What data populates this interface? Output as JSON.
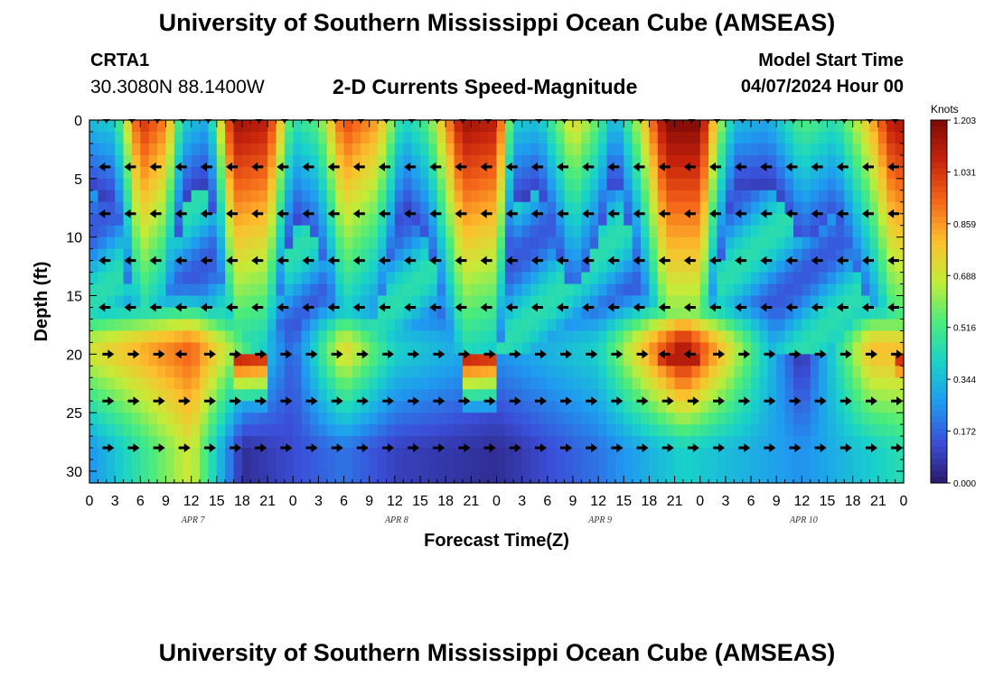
{
  "header": {
    "title": "University of Southern Mississippi Ocean Cube (AMSEAS)",
    "station": "CRTA1",
    "coordinates": "30.3080N  88.1400W",
    "product": "2-D Currents Speed-Magnitude",
    "model_start_label": "Model Start Time",
    "model_start_value": "04/07/2024 Hour 00"
  },
  "footer": {
    "title": "University of Southern Mississippi Ocean Cube (AMSEAS)"
  },
  "chart_data": {
    "type": "heatmap",
    "title": "2-D Currents Speed-Magnitude",
    "xlabel": "Forecast Time(Z)",
    "ylabel": "Depth (ft)",
    "xlim": [
      0,
      96
    ],
    "ylim": [
      31,
      0
    ],
    "x_tick_labels": [
      "0",
      "3",
      "6",
      "9",
      "12",
      "15",
      "18",
      "21",
      "0",
      "3",
      "6",
      "9",
      "12",
      "15",
      "18",
      "21",
      "0",
      "3",
      "6",
      "9",
      "12",
      "15",
      "18",
      "21",
      "0",
      "3",
      "6",
      "9",
      "12",
      "15",
      "18",
      "21",
      "0"
    ],
    "y_ticks": [
      0,
      5,
      10,
      15,
      20,
      25,
      30
    ],
    "date_labels": [
      {
        "label": "APR 7",
        "hour": 12
      },
      {
        "label": "APR 8",
        "hour": 36
      },
      {
        "label": "APR 9",
        "hour": 60
      },
      {
        "label": "APR 10",
        "hour": 84
      }
    ],
    "colorbar": {
      "label": "Knots",
      "min": 0.0,
      "max": 1.203,
      "ticks": [
        "0.000",
        "0.172",
        "0.344",
        "0.516",
        "0.688",
        "0.859",
        "1.031",
        "1.203"
      ],
      "colormap": [
        "#2a1a6b",
        "#3b4fd9",
        "#1f9bf0",
        "#19d3c8",
        "#4cec7b",
        "#c4ec38",
        "#fdbf2d",
        "#f46518",
        "#c7230c",
        "#7e0a05"
      ]
    },
    "depth_levels_ft": [
      0,
      4,
      8,
      12,
      16,
      20,
      24,
      28
    ],
    "arrow_hours": [
      2,
      5,
      8,
      11,
      14,
      17,
      20,
      23,
      26,
      29,
      32,
      35,
      38,
      41,
      44,
      47,
      50,
      53,
      56,
      59,
      62,
      65,
      68,
      71,
      74,
      77,
      80,
      83,
      86,
      89,
      92,
      95
    ],
    "surface_speed_knots_by_hour": [
      [
        0,
        0.35
      ],
      [
        3,
        0.4
      ],
      [
        6,
        1.05
      ],
      [
        9,
        0.9
      ],
      [
        11,
        0.4
      ],
      [
        14,
        0.3
      ],
      [
        17,
        1.15
      ],
      [
        21,
        1.1
      ],
      [
        24,
        0.45
      ],
      [
        27,
        0.55
      ],
      [
        30,
        1.0
      ],
      [
        34,
        0.85
      ],
      [
        37,
        0.4
      ],
      [
        40,
        0.55
      ],
      [
        44,
        1.15
      ],
      [
        48,
        1.1
      ],
      [
        50,
        0.4
      ],
      [
        53,
        0.35
      ],
      [
        57,
        0.75
      ],
      [
        60,
        0.55
      ],
      [
        62,
        0.3
      ],
      [
        65,
        0.7
      ],
      [
        68,
        1.2
      ],
      [
        72,
        1.2
      ],
      [
        74,
        0.7
      ],
      [
        76,
        0.35
      ],
      [
        80,
        0.3
      ],
      [
        84,
        0.55
      ],
      [
        88,
        0.45
      ],
      [
        92,
        0.8
      ],
      [
        95,
        1.15
      ],
      [
        96,
        1.1
      ]
    ],
    "series": [
      {
        "name": "Speed at 20 ft (knots)",
        "points": [
          [
            0,
            0.7
          ],
          [
            12,
            0.95
          ],
          [
            24,
            0.15
          ],
          [
            30,
            0.75
          ],
          [
            36,
            0.4
          ],
          [
            48,
            0.25
          ],
          [
            60,
            0.4
          ],
          [
            70,
            1.15
          ],
          [
            84,
            0.05
          ],
          [
            92,
            0.8
          ]
        ]
      },
      {
        "name": "Speed at 28 ft (knots)",
        "points": [
          [
            0,
            0.25
          ],
          [
            12,
            0.7
          ],
          [
            18,
            0.05
          ],
          [
            30,
            0.2
          ],
          [
            36,
            0.1
          ],
          [
            48,
            0.05
          ],
          [
            60,
            0.2
          ],
          [
            70,
            0.4
          ],
          [
            84,
            0.25
          ],
          [
            96,
            0.45
          ]
        ]
      }
    ]
  }
}
